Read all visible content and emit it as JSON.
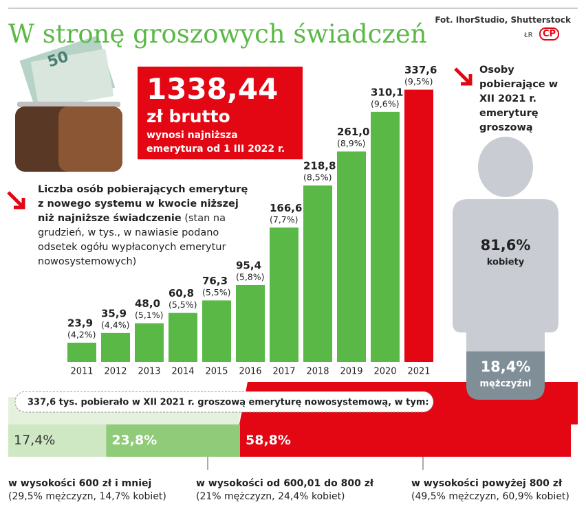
{
  "header": {
    "title": "W stronę groszowych świadczeń",
    "source": "Fot. IhorStudio, Shutterstock",
    "author": "ŁR",
    "logo": "CP"
  },
  "highlight": {
    "amount": "1338,44",
    "unit": "zł brutto",
    "text": "wynosi najniższa emerytura od 1 III 2022 r."
  },
  "description": {
    "lead": "Liczba osób pobierających emeryturę z nowego systemu w kwocie niższej niż najniższe świadczenie",
    "text": "(stan na grudzień, w tys., w nawiasie podano odsetek ogółu wypłaconych emerytur nowosystemowych)"
  },
  "chart_data": [
    {
      "type": "bar",
      "categories": [
        "2011",
        "2012",
        "2013",
        "2014",
        "2015",
        "2016",
        "2017",
        "2018",
        "2019",
        "2020",
        "2021"
      ],
      "values": [
        23.9,
        35.9,
        48.0,
        60.8,
        76.3,
        95.4,
        166.6,
        218.8,
        261.0,
        310.1,
        337.6
      ],
      "value_labels": [
        "23,9",
        "35,9",
        "48,0",
        "60,8",
        "76,3",
        "95,4",
        "166,6",
        "218,8",
        "261,0",
        "310,1",
        "337,6"
      ],
      "percent_labels": [
        "(4,2%)",
        "(4,4%)",
        "(5,1%)",
        "(5,5%)",
        "(5,5%)",
        "(5,8%)",
        "(7,7%)",
        "(8,5%)",
        "(8,9%)",
        "(9,6%)",
        "(9,5%)"
      ],
      "colors": [
        "#5ab946",
        "#5ab946",
        "#5ab946",
        "#5ab946",
        "#5ab946",
        "#5ab946",
        "#5ab946",
        "#5ab946",
        "#5ab946",
        "#5ab946",
        "#e30613"
      ],
      "ylim": [
        0,
        350
      ]
    },
    {
      "type": "pictogram",
      "title": "Osoby pobierające w XII 2021 r. emeryturę groszową",
      "ylim": [
        0,
        100
      ],
      "series": [
        {
          "name": "kobiety",
          "values": [
            81.6
          ],
          "value_labels": [
            "81,6%"
          ],
          "color": "#c9cdd3"
        },
        {
          "name": "mężczyźni",
          "values": [
            18.4
          ],
          "value_labels": [
            "18,4%"
          ],
          "color": "#7f8e97"
        }
      ]
    },
    {
      "type": "stacked_bar",
      "title": "337,6 tys. pobierało w XII 2021 r. groszową emeryturę nowosystemową, w tym:",
      "xlim": [
        0,
        100
      ],
      "series": [
        {
          "name": "w wysokości 600 zł i mniej",
          "detail": "(29,5% mężczyzn, 14,7% kobiet)",
          "values": [
            17.4
          ],
          "value_labels": [
            "17,4%"
          ],
          "color": "#cfe8c4"
        },
        {
          "name": "w wysokości od 600,01 do 800 zł",
          "detail": "(21% mężczyzn, 24,4% kobiet)",
          "values": [
            23.8
          ],
          "value_labels": [
            "23,8%"
          ],
          "color": "#8fcb78"
        },
        {
          "name": "w wysokości powyżej 800 zł",
          "detail": "(49,5% mężczyzn, 60,9% kobiet)",
          "values": [
            58.8
          ],
          "value_labels": [
            "58,8%"
          ],
          "color": "#e30613"
        }
      ]
    }
  ]
}
